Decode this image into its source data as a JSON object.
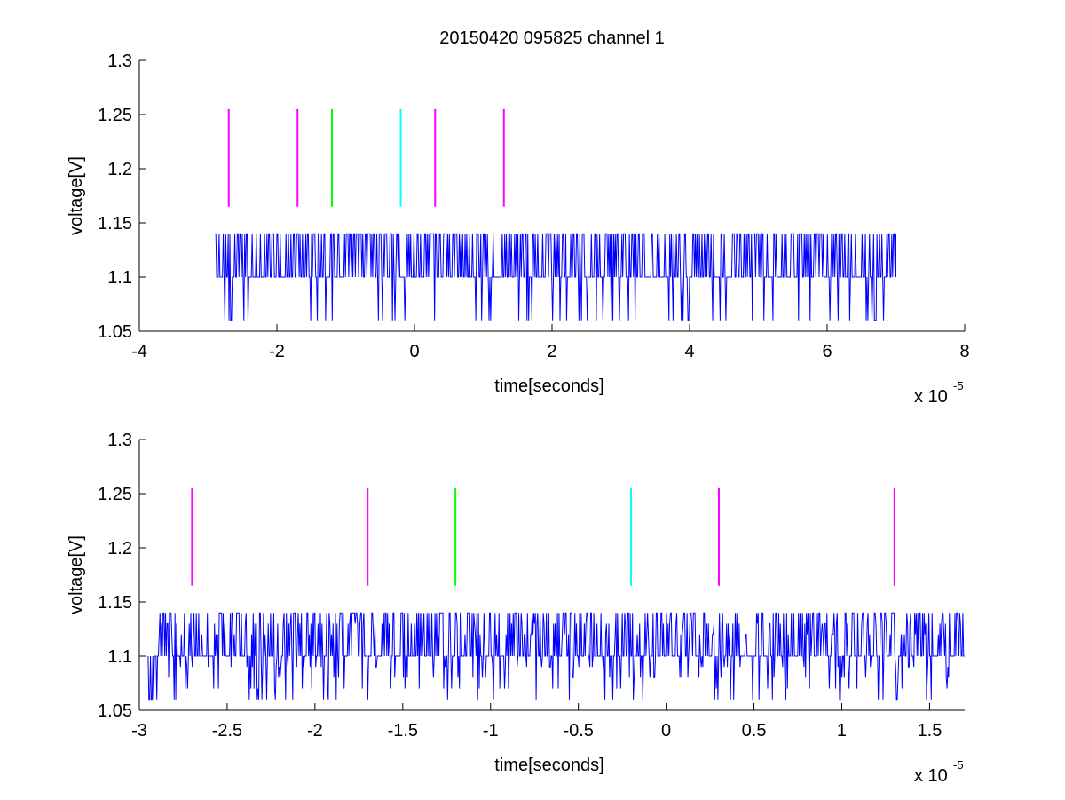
{
  "figure": {
    "title": "20150420 095825 channel 1",
    "background": "#ffffff"
  },
  "colors": {
    "trace": "#0000ff",
    "marker_magenta": "#ff00ff",
    "marker_green": "#00ff00",
    "marker_cyan": "#00ffff",
    "axes": "#000000"
  },
  "chart_data": [
    {
      "type": "line",
      "title": "20150420 095825 channel 1",
      "xlabel": "time[seconds]",
      "ylabel": "voltage[V]",
      "x_exponent_label": "x 10",
      "x_exponent": "-5",
      "xlim": [
        -4e-05,
        8e-05
      ],
      "ylim": [
        1.05,
        1.3
      ],
      "xticks": [
        -4e-05,
        -2e-05,
        0,
        2e-05,
        4e-05,
        6e-05,
        8e-05
      ],
      "xtick_labels": [
        "-4",
        "-2",
        "0",
        "2",
        "4",
        "6",
        "8"
      ],
      "yticks": [
        1.05,
        1.1,
        1.15,
        1.2,
        1.25,
        1.3
      ],
      "ytick_labels": [
        "1.05",
        "1.1",
        "1.15",
        "1.2",
        "1.25",
        "1.3"
      ],
      "grid": false,
      "trace": {
        "x_start": -2.9e-05,
        "x_end": 7e-05,
        "levels": [
          1.06,
          1.1,
          1.14
        ],
        "baseline": 1.1
      },
      "markers": [
        {
          "x": -2.7e-05,
          "y_range": [
            1.165,
            1.255
          ],
          "color": "magenta"
        },
        {
          "x": -1.7e-05,
          "y_range": [
            1.165,
            1.255
          ],
          "color": "magenta"
        },
        {
          "x": -1.2e-05,
          "y_range": [
            1.165,
            1.255
          ],
          "color": "green"
        },
        {
          "x": -2e-06,
          "y_range": [
            1.165,
            1.255
          ],
          "color": "cyan"
        },
        {
          "x": 3e-06,
          "y_range": [
            1.165,
            1.255
          ],
          "color": "magenta"
        },
        {
          "x": 1.3e-05,
          "y_range": [
            1.165,
            1.255
          ],
          "color": "magenta"
        }
      ]
    },
    {
      "type": "line",
      "title": "",
      "xlabel": "time[seconds]",
      "ylabel": "voltage[V]",
      "x_exponent_label": "x 10",
      "x_exponent": "-5",
      "xlim": [
        -3e-05,
        1.7e-05
      ],
      "ylim": [
        1.05,
        1.3
      ],
      "xticks": [
        -3e-05,
        -2.5e-05,
        -2e-05,
        -1.5e-05,
        -1e-05,
        -5e-06,
        0,
        5e-06,
        1e-05,
        1.5e-05
      ],
      "xtick_labels": [
        "-3",
        "-2.5",
        "-2",
        "-1.5",
        "-1",
        "-0.5",
        "0",
        "0.5",
        "1",
        "1.5"
      ],
      "yticks": [
        1.05,
        1.1,
        1.15,
        1.2,
        1.25,
        1.3
      ],
      "ytick_labels": [
        "1.05",
        "1.1",
        "1.15",
        "1.2",
        "1.25",
        "1.3"
      ],
      "grid": false,
      "trace": {
        "x_start": -2.95e-05,
        "x_end": 1.7e-05,
        "levels": [
          1.06,
          1.07,
          1.08,
          1.09,
          1.1,
          1.12,
          1.13,
          1.14
        ],
        "baseline": 1.1
      },
      "markers": [
        {
          "x": -2.7e-05,
          "y_range": [
            1.165,
            1.255
          ],
          "color": "magenta"
        },
        {
          "x": -1.7e-05,
          "y_range": [
            1.165,
            1.255
          ],
          "color": "magenta"
        },
        {
          "x": -1.2e-05,
          "y_range": [
            1.165,
            1.255
          ],
          "color": "green"
        },
        {
          "x": -2e-06,
          "y_range": [
            1.165,
            1.255
          ],
          "color": "cyan"
        },
        {
          "x": 3e-06,
          "y_range": [
            1.165,
            1.255
          ],
          "color": "magenta"
        },
        {
          "x": 1.3e-05,
          "y_range": [
            1.165,
            1.255
          ],
          "color": "magenta"
        }
      ]
    }
  ]
}
